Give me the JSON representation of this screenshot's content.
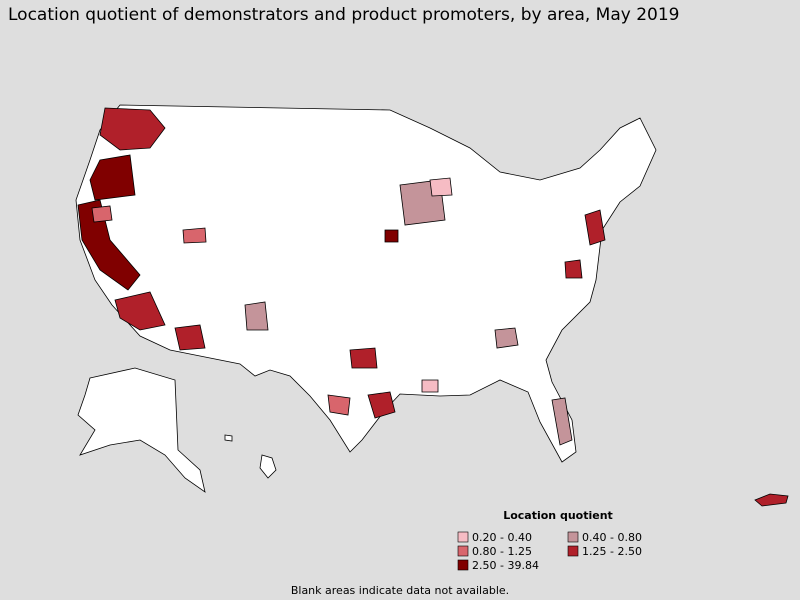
{
  "title": "Location quotient of demonstrators and product promoters, by area, May 2019",
  "legend": {
    "title": "Location quotient",
    "items": [
      {
        "label": "0.20 - 0.40",
        "color": "#f6bcc4"
      },
      {
        "label": "0.40 - 0.80",
        "color": "#c4949a"
      },
      {
        "label": "0.80 - 1.25",
        "color": "#d8656c"
      },
      {
        "label": "1.25 - 2.50",
        "color": "#b0202a"
      },
      {
        "label": "2.50 - 39.84",
        "color": "#800000"
      }
    ]
  },
  "footnote": "Blank areas indicate data not available."
}
